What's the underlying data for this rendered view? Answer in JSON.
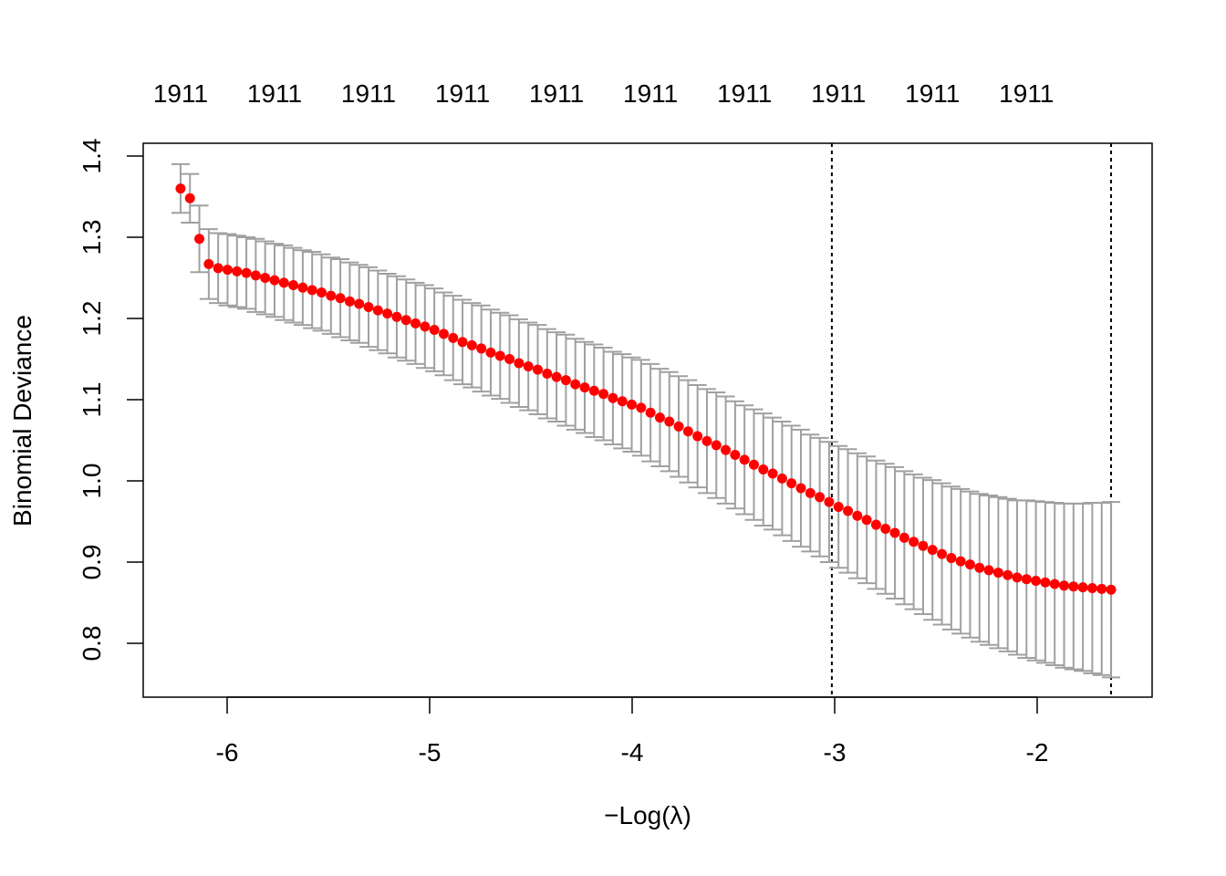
{
  "chart_data": {
    "type": "scatter",
    "title": "",
    "xlabel": "−Log(λ)",
    "ylabel": "Binomial Deviance",
    "xlim": [
      -6.414,
      -1.432
    ],
    "ylim": [
      0.734,
      1.416
    ],
    "x_ticks": [
      -6,
      -5,
      -4,
      -3,
      -2
    ],
    "x_tick_labels": [
      "-6",
      "-5",
      "-4",
      "-3",
      "-2"
    ],
    "y_ticks": [
      0.8,
      0.9,
      1.0,
      1.1,
      1.2,
      1.3,
      1.4
    ],
    "y_tick_labels": [
      "0.8",
      "0.9",
      "1.0",
      "1.1",
      "1.2",
      "1.3",
      "1.4"
    ],
    "top_axis_labels": [
      "1911",
      "1911",
      "1911",
      "1911",
      "1911",
      "1911",
      "1911",
      "1911",
      "1911",
      "1911"
    ],
    "top_axis_label_every": 10,
    "x_range": [
      -6.23,
      -1.635
    ],
    "vlines": [
      -3.014,
      -1.635
    ],
    "colors": {
      "points": "#FF0000",
      "errorbars": "#A0A0A0",
      "vlines": "#000000"
    },
    "grid": false,
    "mean": [
      1.36,
      1.348,
      1.298,
      1.267,
      1.262,
      1.26,
      1.258,
      1.256,
      1.253,
      1.25,
      1.247,
      1.244,
      1.241,
      1.238,
      1.235,
      1.232,
      1.228,
      1.225,
      1.221,
      1.218,
      1.214,
      1.21,
      1.206,
      1.202,
      1.198,
      1.194,
      1.19,
      1.186,
      1.181,
      1.176,
      1.171,
      1.167,
      1.163,
      1.158,
      1.154,
      1.15,
      1.145,
      1.141,
      1.137,
      1.132,
      1.128,
      1.124,
      1.119,
      1.115,
      1.111,
      1.107,
      1.102,
      1.098,
      1.094,
      1.09,
      1.084,
      1.078,
      1.073,
      1.067,
      1.061,
      1.055,
      1.049,
      1.044,
      1.038,
      1.032,
      1.026,
      1.02,
      1.014,
      1.009,
      1.003,
      0.997,
      0.991,
      0.985,
      0.98,
      0.974,
      0.968,
      0.963,
      0.957,
      0.952,
      0.946,
      0.941,
      0.936,
      0.93,
      0.925,
      0.92,
      0.915,
      0.91,
      0.905,
      0.901,
      0.897,
      0.893,
      0.89,
      0.887,
      0.884,
      0.881,
      0.879,
      0.877,
      0.875,
      0.873,
      0.871,
      0.87,
      0.869,
      0.868,
      0.867,
      0.866
    ],
    "se": [
      0.03,
      0.03,
      0.041,
      0.043,
      0.043,
      0.044,
      0.044,
      0.044,
      0.045,
      0.045,
      0.045,
      0.046,
      0.046,
      0.046,
      0.047,
      0.047,
      0.047,
      0.048,
      0.048,
      0.048,
      0.049,
      0.049,
      0.049,
      0.05,
      0.05,
      0.05,
      0.051,
      0.051,
      0.051,
      0.052,
      0.052,
      0.052,
      0.053,
      0.053,
      0.053,
      0.054,
      0.054,
      0.054,
      0.055,
      0.055,
      0.055,
      0.056,
      0.056,
      0.056,
      0.057,
      0.057,
      0.057,
      0.058,
      0.058,
      0.059,
      0.06,
      0.06,
      0.061,
      0.062,
      0.063,
      0.063,
      0.064,
      0.065,
      0.066,
      0.066,
      0.067,
      0.068,
      0.069,
      0.069,
      0.07,
      0.071,
      0.072,
      0.072,
      0.073,
      0.074,
      0.075,
      0.076,
      0.077,
      0.078,
      0.079,
      0.08,
      0.081,
      0.082,
      0.083,
      0.084,
      0.086,
      0.087,
      0.088,
      0.089,
      0.09,
      0.091,
      0.092,
      0.093,
      0.094,
      0.095,
      0.097,
      0.098,
      0.099,
      0.1,
      0.101,
      0.102,
      0.103,
      0.105,
      0.106,
      0.108
    ]
  }
}
